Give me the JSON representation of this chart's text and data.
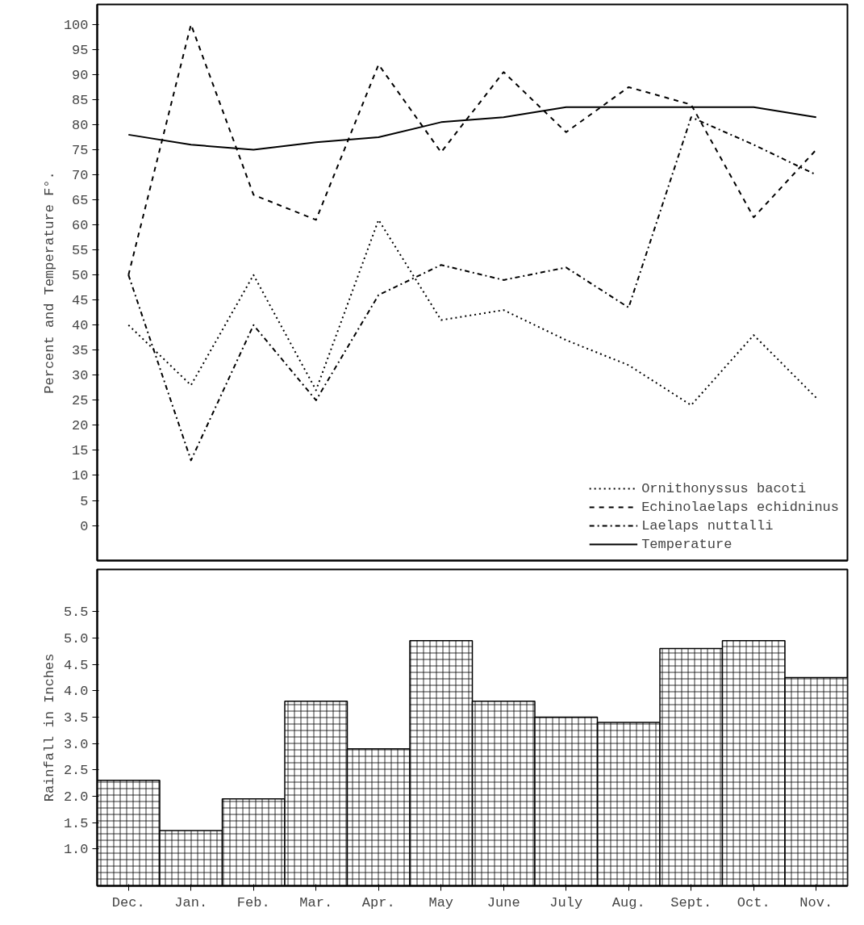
{
  "chart_data": [
    {
      "type": "line",
      "ylabel": "Percent and Temperature F°.",
      "tick_labels": "y",
      "legend": "bottom right",
      "ylim": [
        -7,
        104
      ],
      "yticks": [
        0,
        5,
        10,
        15,
        20,
        25,
        30,
        35,
        40,
        45,
        50,
        55,
        60,
        65,
        70,
        75,
        80,
        85,
        90,
        95,
        100
      ],
      "series": [
        {
          "name": "Ornithonyssus bacoti",
          "color": "#000000",
          "line_style": "dotted",
          "values": [
            40,
            28,
            50,
            27,
            61,
            41,
            43,
            37,
            32,
            24,
            38,
            25.5
          ]
        },
        {
          "name": "Echinolaelaps echidninus",
          "color": "#000000",
          "line_style": "dashed",
          "values": [
            50,
            100,
            66,
            61,
            92,
            74.5,
            90.5,
            78.5,
            87.5,
            84,
            61.5,
            75
          ]
        },
        {
          "name": "Laelaps nuttalli",
          "color": "#000000",
          "line_style": "dashdot",
          "values": [
            50,
            13,
            40,
            25,
            46,
            52,
            49,
            51.5,
            43.5,
            81.5,
            76,
            70
          ]
        },
        {
          "name": "Temperature",
          "color": "#000000",
          "line_style": "solid",
          "values": [
            78,
            76,
            75,
            76.5,
            77.5,
            80.5,
            81.5,
            83.5,
            83.5,
            83.5,
            83.5,
            81.5
          ]
        }
      ]
    },
    {
      "type": "bar",
      "ylabel": "Rainfall in Inches",
      "categories": [
        "Dec.",
        "Jan.",
        "Feb.",
        "Mar.",
        "Apr.",
        "May",
        "June",
        "July",
        "Aug.",
        "Sept.",
        "Oct.",
        "Nov."
      ],
      "color": "#000000",
      "ylim": [
        0.3,
        6.3
      ],
      "yticks": [
        {
          "value": 1,
          "label": "1.0"
        },
        1.5,
        {
          "value": 2,
          "label": "2.0"
        },
        2.5,
        {
          "value": 3,
          "label": "3.0"
        },
        3.5,
        {
          "value": 4,
          "label": "4.0"
        },
        4.5,
        {
          "value": 5,
          "label": "5.0"
        },
        5.5
      ],
      "values": [
        2.3,
        1.35,
        1.95,
        3.8,
        2.9,
        4.95,
        3.8,
        3.5,
        3.4,
        4.8,
        4.95,
        4.25
      ]
    }
  ]
}
